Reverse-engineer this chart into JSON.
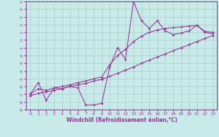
{
  "xlabel": "Windchill (Refroidissement éolien,°C)",
  "bg_color": "#c8eae8",
  "line_color": "#993399",
  "grid_color": "#a8ccc8",
  "x_data": [
    0,
    1,
    2,
    3,
    4,
    5,
    6,
    7,
    8,
    9,
    10,
    11,
    12,
    13,
    14,
    15,
    16,
    17,
    18,
    19,
    20,
    21,
    22,
    23
  ],
  "y_line_scatter": [
    -7.0,
    -5.5,
    -7.8,
    -6.2,
    -6.3,
    -6.0,
    -6.2,
    -8.4,
    -8.4,
    -8.2,
    -3.5,
    -1.0,
    -2.5,
    5.0,
    2.5,
    1.5,
    2.5,
    1.2,
    0.7,
    0.9,
    1.2,
    1.9,
    1.0,
    0.8
  ],
  "y_line_upper": [
    -7.0,
    -6.3,
    -6.5,
    -6.2,
    -6.0,
    -5.8,
    -5.5,
    -5.3,
    -5.0,
    -4.8,
    -3.2,
    -2.0,
    -1.2,
    -0.2,
    0.5,
    1.0,
    1.3,
    1.5,
    1.6,
    1.7,
    1.8,
    1.9,
    1.1,
    1.0
  ],
  "y_line_lower": [
    -7.2,
    -6.9,
    -6.7,
    -6.5,
    -6.3,
    -6.0,
    -5.8,
    -5.6,
    -5.3,
    -5.1,
    -4.7,
    -4.3,
    -3.9,
    -3.5,
    -3.0,
    -2.6,
    -2.2,
    -1.8,
    -1.4,
    -1.0,
    -0.6,
    -0.2,
    0.2,
    0.6
  ],
  "ylim": [
    -9,
    5
  ],
  "xlim": [
    -0.5,
    23.5
  ],
  "yticks": [
    5,
    4,
    3,
    2,
    1,
    0,
    -1,
    -2,
    -3,
    -4,
    -5,
    -6,
    -7,
    -8,
    -9
  ],
  "xticks": [
    0,
    1,
    2,
    3,
    4,
    5,
    6,
    7,
    8,
    9,
    10,
    11,
    12,
    13,
    14,
    15,
    16,
    17,
    18,
    19,
    20,
    21,
    22,
    23
  ]
}
